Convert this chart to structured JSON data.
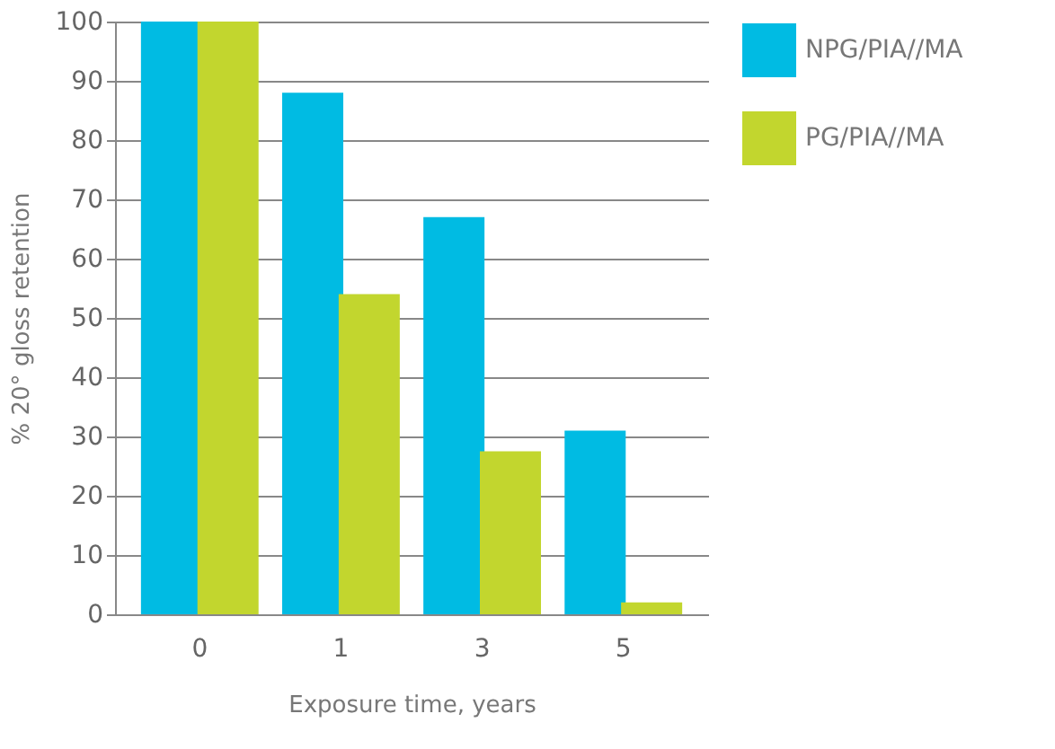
{
  "chart_data": {
    "type": "bar",
    "xlabel": "Exposure time, years",
    "ylabel": "% 20° gloss retention",
    "categories": [
      "0",
      "1",
      "3",
      "5"
    ],
    "series": [
      {
        "name": "NPG/PIA//MA",
        "color": "#00bbe3",
        "values": [
          100,
          88,
          67,
          31
        ]
      },
      {
        "name": "PG/PIA//MA",
        "color": "#c2d62e",
        "values": [
          100,
          54,
          27.5,
          2
        ]
      }
    ],
    "ylim": [
      0,
      100
    ],
    "yticks": [
      0,
      10,
      20,
      30,
      40,
      50,
      60,
      70,
      80,
      90,
      100
    ],
    "grid": "y",
    "legend": "top right"
  }
}
